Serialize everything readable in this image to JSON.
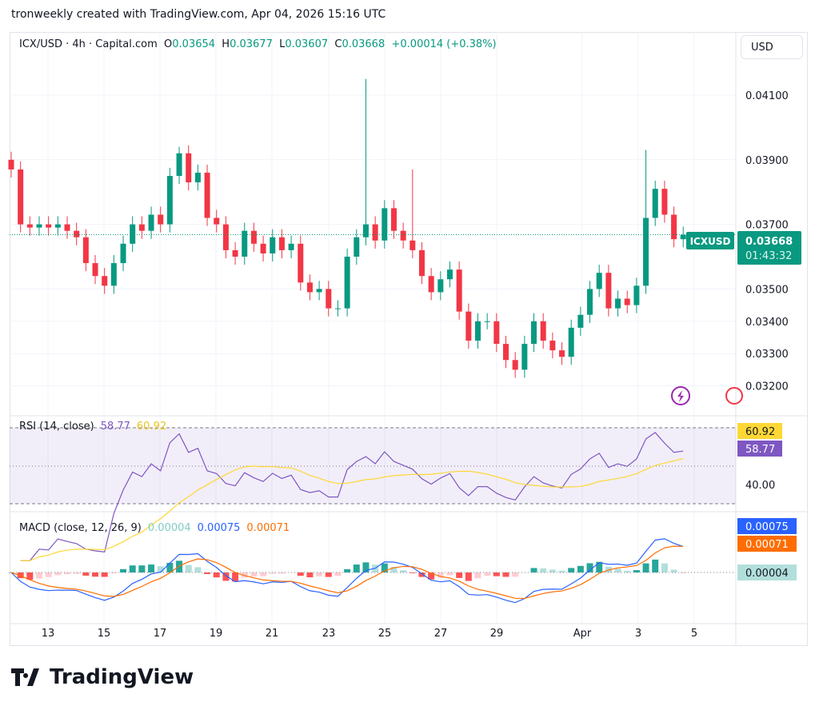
{
  "caption": "tronweekly created with TradingView.com, Apr 04, 2026 15:16 UTC",
  "legend": {
    "symbol": "ICX/USD · 4h · Capital.com",
    "o_label": "O",
    "o": "0.03654",
    "h_label": "H",
    "h": "0.03677",
    "l_label": "L",
    "l": "0.03607",
    "c_label": "C",
    "c": "0.03668",
    "change": "+0.00014 (+0.38%)"
  },
  "currency_button": "USD",
  "price_tag": {
    "symbol": "ICXUSD",
    "price": "0.03668",
    "countdown": "01:43:32"
  },
  "colors": {
    "up": "#089981",
    "down": "#f23645",
    "rsi": "#7e57c2",
    "rsi_ma": "#fdd835",
    "macd": "#2962ff",
    "signal": "#ff6d00"
  },
  "rsi": {
    "label": "RSI (14, close)",
    "value": "58.77",
    "ma": "60.92",
    "axis_label": "40.00"
  },
  "macd": {
    "label": "MACD (close, 12, 26, 9)",
    "hist": "0.00004",
    "macd": "0.00075",
    "signal": "0.00071"
  },
  "logo": "TradingView",
  "chart_data": {
    "type": "candlestick",
    "price_ticks": [
      "0.04100",
      "0.03900",
      "0.03700",
      "0.03500",
      "0.03400",
      "0.03300",
      "0.03200"
    ],
    "date_ticks": [
      "13",
      "15",
      "17",
      "19",
      "21",
      "23",
      "25",
      "27",
      "29",
      "Apr",
      "3",
      "5"
    ],
    "ylim": [
      0.0318,
      0.0423
    ],
    "close": [
      0.0387,
      0.037,
      0.0369,
      0.037,
      0.0369,
      0.037,
      0.0368,
      0.0366,
      0.0358,
      0.0354,
      0.0351,
      0.0358,
      0.0364,
      0.037,
      0.0368,
      0.0373,
      0.037,
      0.0385,
      0.0392,
      0.0383,
      0.0386,
      0.0372,
      0.037,
      0.0362,
      0.036,
      0.0368,
      0.0364,
      0.0361,
      0.0366,
      0.0362,
      0.0364,
      0.0352,
      0.0349,
      0.035,
      0.0344,
      0.0344,
      0.036,
      0.0366,
      0.037,
      0.0365,
      0.0375,
      0.0368,
      0.0365,
      0.0362,
      0.0354,
      0.0349,
      0.0353,
      0.0356,
      0.0343,
      0.0334,
      0.034,
      0.034,
      0.0333,
      0.0328,
      0.0325,
      0.0333,
      0.034,
      0.0334,
      0.0331,
      0.0329,
      0.0338,
      0.0342,
      0.035,
      0.0355,
      0.0344,
      0.0347,
      0.0345,
      0.0351,
      0.0372,
      0.0381,
      0.0373,
      0.03654,
      0.03668
    ],
    "high_spikes": {
      "18": 0.0394,
      "38": 0.0415,
      "43": 0.0387,
      "68": 0.0393
    }
  }
}
